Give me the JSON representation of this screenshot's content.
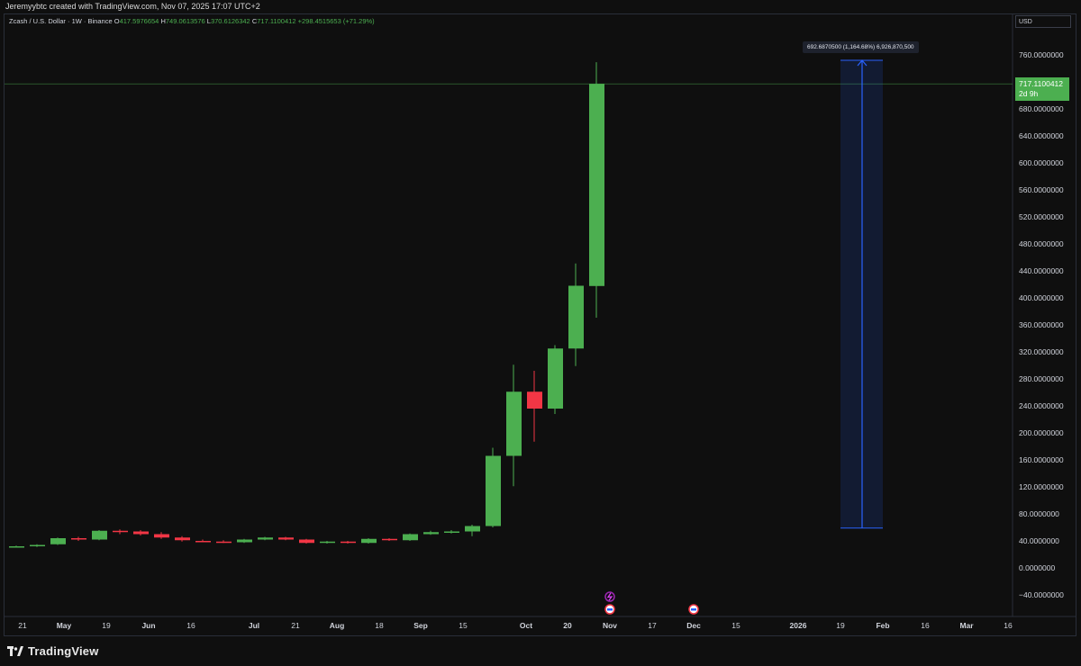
{
  "attribution": "Jeremyybtc created with TradingView.com, Nov 07, 2025 17:07 UTC+2",
  "legend": {
    "symbol": "Zcash / U.S. Dollar · 1W · Binance",
    "open_key": "O",
    "open": "417.5976654",
    "high_key": "H",
    "high": "749.0613576",
    "low_key": "L",
    "low": "370.6126342",
    "close_key": "C",
    "close": "717.1100412",
    "change": "+298.4515653 (+71.29%)"
  },
  "price_axis": {
    "currency": "USD",
    "last_price": "717.1100412",
    "countdown": "2d 9h"
  },
  "measure_tool": {
    "label": "692.6870500 (1,164.68%) 6,926,870,500",
    "from_price": 59.0,
    "to_price": 752.0,
    "color": "#2962ff"
  },
  "colors": {
    "up": "#4caf50",
    "down": "#f23645",
    "background": "#0f0f0f",
    "price_line": "#4caf50"
  },
  "chart_data": {
    "type": "candlestick",
    "title": "Zcash / U.S. Dollar · 1W · Binance",
    "ylim": [
      -50,
      790
    ],
    "y_ticks": [
      -40,
      0,
      40,
      80,
      120,
      160,
      200,
      240,
      280,
      320,
      360,
      400,
      440,
      480,
      520,
      560,
      600,
      640,
      680,
      720,
      760
    ],
    "y_tick_labels": [
      "−40.0000000",
      "0.0000000",
      "40.0000000",
      "80.0000000",
      "120.0000000",
      "160.0000000",
      "200.0000000",
      "240.0000000",
      "280.0000000",
      "320.0000000",
      "360.0000000",
      "400.0000000",
      "440.0000000",
      "480.0000000",
      "520.0000000",
      "560.0000000",
      "600.0000000",
      "640.0000000",
      "680.0000000",
      "720.0000000",
      "760.0000000"
    ],
    "x_tick_labels": [
      "21",
      "May",
      "19",
      "Jun",
      "16",
      "Jul",
      "21",
      "Aug",
      "18",
      "Sep",
      "15",
      "Oct",
      "20",
      "Nov",
      "17",
      "Dec",
      "15",
      "2026",
      "19",
      "Feb",
      "16",
      "Mar",
      "16"
    ],
    "candles": [
      {
        "week": "2025-04-14",
        "o": 31,
        "h": 33,
        "l": 30,
        "c": 32
      },
      {
        "week": "2025-04-21",
        "o": 32,
        "h": 35,
        "l": 31,
        "c": 34
      },
      {
        "week": "2025-04-28",
        "o": 35,
        "h": 45,
        "l": 34,
        "c": 44
      },
      {
        "week": "2025-05-05",
        "o": 44,
        "h": 46,
        "l": 40,
        "c": 42
      },
      {
        "week": "2025-05-12",
        "o": 42,
        "h": 56,
        "l": 41,
        "c": 55
      },
      {
        "week": "2025-05-19",
        "o": 55,
        "h": 57,
        "l": 50,
        "c": 53
      },
      {
        "week": "2025-05-26",
        "o": 54,
        "h": 56,
        "l": 48,
        "c": 50
      },
      {
        "week": "2025-06-02",
        "o": 50,
        "h": 53,
        "l": 43,
        "c": 45
      },
      {
        "week": "2025-06-09",
        "o": 45,
        "h": 47,
        "l": 39,
        "c": 41
      },
      {
        "week": "2025-06-16",
        "o": 40,
        "h": 42,
        "l": 38,
        "c": 39
      },
      {
        "week": "2025-06-23",
        "o": 39,
        "h": 41,
        "l": 37,
        "c": 38
      },
      {
        "week": "2025-06-30",
        "o": 38,
        "h": 43,
        "l": 37,
        "c": 42
      },
      {
        "week": "2025-07-07",
        "o": 42,
        "h": 46,
        "l": 41,
        "c": 45
      },
      {
        "week": "2025-07-14",
        "o": 45,
        "h": 46,
        "l": 41,
        "c": 42
      },
      {
        "week": "2025-07-21",
        "o": 42,
        "h": 43,
        "l": 36,
        "c": 37
      },
      {
        "week": "2025-07-28",
        "o": 38,
        "h": 40,
        "l": 36,
        "c": 39
      },
      {
        "week": "2025-08-04",
        "o": 39,
        "h": 40,
        "l": 36,
        "c": 37
      },
      {
        "week": "2025-08-11",
        "o": 37,
        "h": 44,
        "l": 36,
        "c": 43
      },
      {
        "week": "2025-08-18",
        "o": 43,
        "h": 44,
        "l": 40,
        "c": 41
      },
      {
        "week": "2025-08-25",
        "o": 41,
        "h": 51,
        "l": 40,
        "c": 50
      },
      {
        "week": "2025-09-01",
        "o": 50,
        "h": 55,
        "l": 49,
        "c": 53
      },
      {
        "week": "2025-09-08",
        "o": 53,
        "h": 56,
        "l": 51,
        "c": 54
      },
      {
        "week": "2025-09-15",
        "o": 54,
        "h": 64,
        "l": 47,
        "c": 62
      },
      {
        "week": "2025-09-22",
        "o": 62,
        "h": 178,
        "l": 60,
        "c": 166
      },
      {
        "week": "2025-09-29",
        "o": 166,
        "h": 301,
        "l": 121,
        "c": 261
      },
      {
        "week": "2025-10-06",
        "o": 261,
        "h": 292,
        "l": 187,
        "c": 236
      },
      {
        "week": "2025-10-13",
        "o": 236,
        "h": 330,
        "l": 228,
        "c": 325
      },
      {
        "week": "2025-10-20",
        "o": 325,
        "h": 451,
        "l": 299,
        "c": 418
      },
      {
        "week": "2025-10-27",
        "o": 417.6,
        "h": 749.1,
        "l": 370.6,
        "c": 717.1
      }
    ]
  }
}
